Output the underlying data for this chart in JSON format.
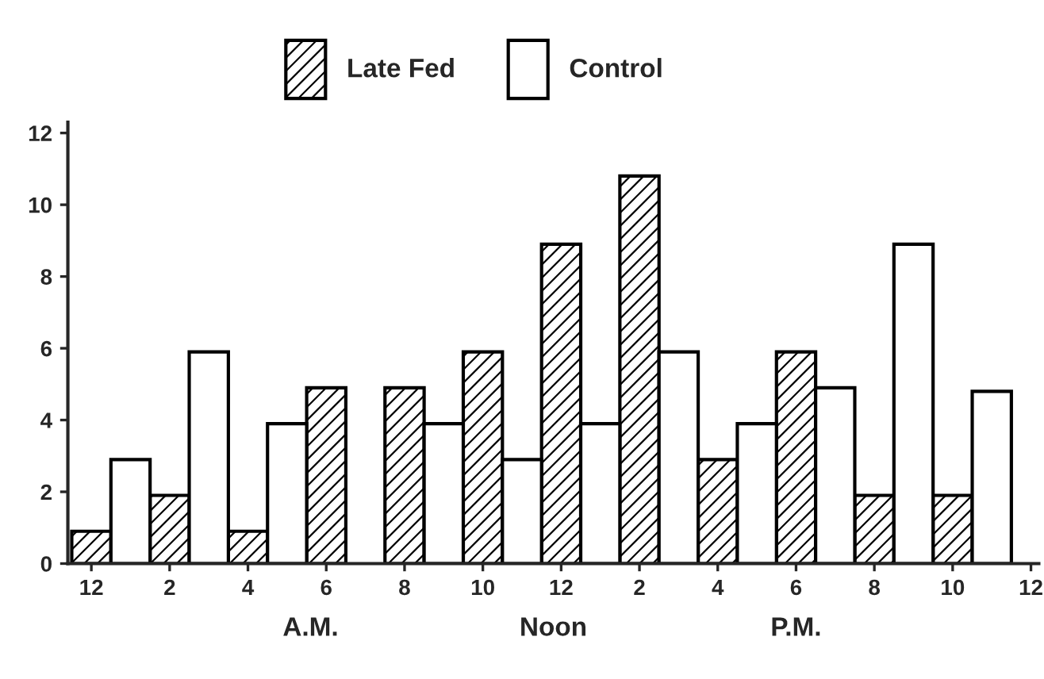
{
  "chart_data": {
    "type": "bar",
    "categories": [
      "12",
      null,
      "2",
      null,
      "4",
      null,
      "6",
      null,
      "8",
      null,
      "10",
      null,
      "12",
      null,
      "2",
      null,
      "4",
      null,
      "6",
      null,
      "8",
      null,
      "10",
      null,
      "12"
    ],
    "series": [
      {
        "name": "Late Fed",
        "color": "#000000",
        "values": [
          0.9,
          null,
          1.9,
          null,
          0.9,
          null,
          4.9,
          null,
          4.9,
          null,
          5.9,
          null,
          8.9,
          null,
          10.8,
          null,
          2.9,
          null,
          5.9,
          null,
          1.9,
          null,
          1.9,
          null,
          null
        ]
      },
      {
        "name": "Control",
        "color": "#ffffff",
        "values": [
          null,
          2.9,
          null,
          5.9,
          null,
          3.9,
          null,
          null,
          null,
          3.9,
          null,
          2.9,
          null,
          3.9,
          null,
          5.9,
          null,
          3.9,
          null,
          4.9,
          null,
          8.9,
          null,
          4.8,
          null
        ]
      }
    ],
    "ylim": [
      0,
      12.3
    ],
    "yticks": [
      0,
      2,
      4,
      6,
      8,
      10,
      12
    ],
    "annotations": [
      "A.M.",
      "Noon",
      "P.M."
    ],
    "legend": "top left",
    "grid": false
  }
}
